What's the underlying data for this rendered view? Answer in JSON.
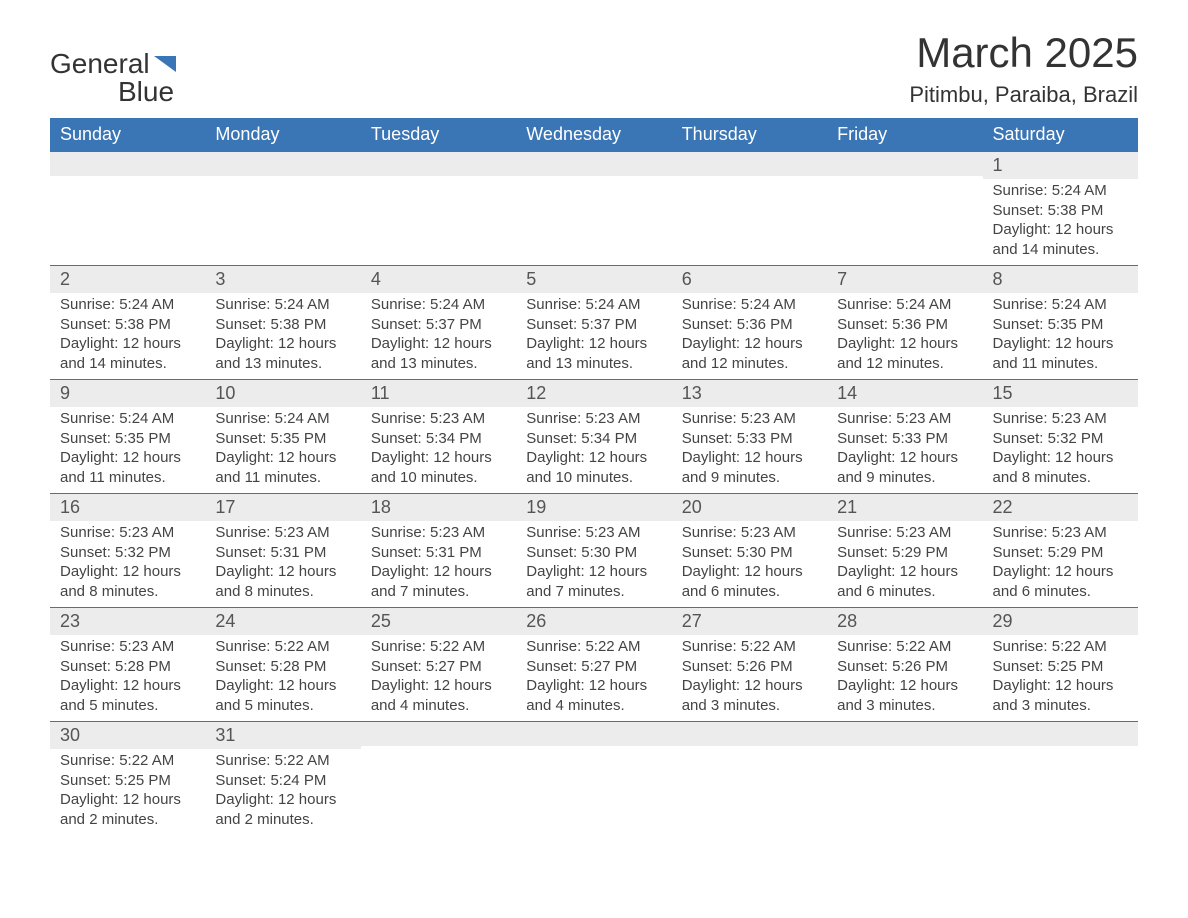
{
  "logo": {
    "text_general": "General",
    "text_blue": "Blue",
    "flag_color": "#3a75b5"
  },
  "header": {
    "month_title": "March 2025",
    "location": "Pitimbu, Paraiba, Brazil"
  },
  "colors": {
    "header_bg": "#3a75b5",
    "header_text": "#ffffff",
    "daynum_bg": "#ececec",
    "text": "#333333",
    "border": "#3a75b5"
  },
  "typography": {
    "month_title_fontsize": 42,
    "location_fontsize": 22,
    "weekday_fontsize": 18,
    "daynum_fontsize": 18,
    "body_fontsize": 15
  },
  "layout": {
    "columns": 7,
    "rows": 6,
    "start_weekday": "Sunday"
  },
  "weekdays": [
    "Sunday",
    "Monday",
    "Tuesday",
    "Wednesday",
    "Thursday",
    "Friday",
    "Saturday"
  ],
  "days": [
    [
      {
        "daynum": "",
        "sunrise": "",
        "sunset": "",
        "daylight": ""
      },
      {
        "daynum": "",
        "sunrise": "",
        "sunset": "",
        "daylight": ""
      },
      {
        "daynum": "",
        "sunrise": "",
        "sunset": "",
        "daylight": ""
      },
      {
        "daynum": "",
        "sunrise": "",
        "sunset": "",
        "daylight": ""
      },
      {
        "daynum": "",
        "sunrise": "",
        "sunset": "",
        "daylight": ""
      },
      {
        "daynum": "",
        "sunrise": "",
        "sunset": "",
        "daylight": ""
      },
      {
        "daynum": "1",
        "sunrise": "Sunrise: 5:24 AM",
        "sunset": "Sunset: 5:38 PM",
        "daylight": "Daylight: 12 hours and 14 minutes."
      }
    ],
    [
      {
        "daynum": "2",
        "sunrise": "Sunrise: 5:24 AM",
        "sunset": "Sunset: 5:38 PM",
        "daylight": "Daylight: 12 hours and 14 minutes."
      },
      {
        "daynum": "3",
        "sunrise": "Sunrise: 5:24 AM",
        "sunset": "Sunset: 5:38 PM",
        "daylight": "Daylight: 12 hours and 13 minutes."
      },
      {
        "daynum": "4",
        "sunrise": "Sunrise: 5:24 AM",
        "sunset": "Sunset: 5:37 PM",
        "daylight": "Daylight: 12 hours and 13 minutes."
      },
      {
        "daynum": "5",
        "sunrise": "Sunrise: 5:24 AM",
        "sunset": "Sunset: 5:37 PM",
        "daylight": "Daylight: 12 hours and 13 minutes."
      },
      {
        "daynum": "6",
        "sunrise": "Sunrise: 5:24 AM",
        "sunset": "Sunset: 5:36 PM",
        "daylight": "Daylight: 12 hours and 12 minutes."
      },
      {
        "daynum": "7",
        "sunrise": "Sunrise: 5:24 AM",
        "sunset": "Sunset: 5:36 PM",
        "daylight": "Daylight: 12 hours and 12 minutes."
      },
      {
        "daynum": "8",
        "sunrise": "Sunrise: 5:24 AM",
        "sunset": "Sunset: 5:35 PM",
        "daylight": "Daylight: 12 hours and 11 minutes."
      }
    ],
    [
      {
        "daynum": "9",
        "sunrise": "Sunrise: 5:24 AM",
        "sunset": "Sunset: 5:35 PM",
        "daylight": "Daylight: 12 hours and 11 minutes."
      },
      {
        "daynum": "10",
        "sunrise": "Sunrise: 5:24 AM",
        "sunset": "Sunset: 5:35 PM",
        "daylight": "Daylight: 12 hours and 11 minutes."
      },
      {
        "daynum": "11",
        "sunrise": "Sunrise: 5:23 AM",
        "sunset": "Sunset: 5:34 PM",
        "daylight": "Daylight: 12 hours and 10 minutes."
      },
      {
        "daynum": "12",
        "sunrise": "Sunrise: 5:23 AM",
        "sunset": "Sunset: 5:34 PM",
        "daylight": "Daylight: 12 hours and 10 minutes."
      },
      {
        "daynum": "13",
        "sunrise": "Sunrise: 5:23 AM",
        "sunset": "Sunset: 5:33 PM",
        "daylight": "Daylight: 12 hours and 9 minutes."
      },
      {
        "daynum": "14",
        "sunrise": "Sunrise: 5:23 AM",
        "sunset": "Sunset: 5:33 PM",
        "daylight": "Daylight: 12 hours and 9 minutes."
      },
      {
        "daynum": "15",
        "sunrise": "Sunrise: 5:23 AM",
        "sunset": "Sunset: 5:32 PM",
        "daylight": "Daylight: 12 hours and 8 minutes."
      }
    ],
    [
      {
        "daynum": "16",
        "sunrise": "Sunrise: 5:23 AM",
        "sunset": "Sunset: 5:32 PM",
        "daylight": "Daylight: 12 hours and 8 minutes."
      },
      {
        "daynum": "17",
        "sunrise": "Sunrise: 5:23 AM",
        "sunset": "Sunset: 5:31 PM",
        "daylight": "Daylight: 12 hours and 8 minutes."
      },
      {
        "daynum": "18",
        "sunrise": "Sunrise: 5:23 AM",
        "sunset": "Sunset: 5:31 PM",
        "daylight": "Daylight: 12 hours and 7 minutes."
      },
      {
        "daynum": "19",
        "sunrise": "Sunrise: 5:23 AM",
        "sunset": "Sunset: 5:30 PM",
        "daylight": "Daylight: 12 hours and 7 minutes."
      },
      {
        "daynum": "20",
        "sunrise": "Sunrise: 5:23 AM",
        "sunset": "Sunset: 5:30 PM",
        "daylight": "Daylight: 12 hours and 6 minutes."
      },
      {
        "daynum": "21",
        "sunrise": "Sunrise: 5:23 AM",
        "sunset": "Sunset: 5:29 PM",
        "daylight": "Daylight: 12 hours and 6 minutes."
      },
      {
        "daynum": "22",
        "sunrise": "Sunrise: 5:23 AM",
        "sunset": "Sunset: 5:29 PM",
        "daylight": "Daylight: 12 hours and 6 minutes."
      }
    ],
    [
      {
        "daynum": "23",
        "sunrise": "Sunrise: 5:23 AM",
        "sunset": "Sunset: 5:28 PM",
        "daylight": "Daylight: 12 hours and 5 minutes."
      },
      {
        "daynum": "24",
        "sunrise": "Sunrise: 5:22 AM",
        "sunset": "Sunset: 5:28 PM",
        "daylight": "Daylight: 12 hours and 5 minutes."
      },
      {
        "daynum": "25",
        "sunrise": "Sunrise: 5:22 AM",
        "sunset": "Sunset: 5:27 PM",
        "daylight": "Daylight: 12 hours and 4 minutes."
      },
      {
        "daynum": "26",
        "sunrise": "Sunrise: 5:22 AM",
        "sunset": "Sunset: 5:27 PM",
        "daylight": "Daylight: 12 hours and 4 minutes."
      },
      {
        "daynum": "27",
        "sunrise": "Sunrise: 5:22 AM",
        "sunset": "Sunset: 5:26 PM",
        "daylight": "Daylight: 12 hours and 3 minutes."
      },
      {
        "daynum": "28",
        "sunrise": "Sunrise: 5:22 AM",
        "sunset": "Sunset: 5:26 PM",
        "daylight": "Daylight: 12 hours and 3 minutes."
      },
      {
        "daynum": "29",
        "sunrise": "Sunrise: 5:22 AM",
        "sunset": "Sunset: 5:25 PM",
        "daylight": "Daylight: 12 hours and 3 minutes."
      }
    ],
    [
      {
        "daynum": "30",
        "sunrise": "Sunrise: 5:22 AM",
        "sunset": "Sunset: 5:25 PM",
        "daylight": "Daylight: 12 hours and 2 minutes."
      },
      {
        "daynum": "31",
        "sunrise": "Sunrise: 5:22 AM",
        "sunset": "Sunset: 5:24 PM",
        "daylight": "Daylight: 12 hours and 2 minutes."
      },
      {
        "daynum": "",
        "sunrise": "",
        "sunset": "",
        "daylight": ""
      },
      {
        "daynum": "",
        "sunrise": "",
        "sunset": "",
        "daylight": ""
      },
      {
        "daynum": "",
        "sunrise": "",
        "sunset": "",
        "daylight": ""
      },
      {
        "daynum": "",
        "sunrise": "",
        "sunset": "",
        "daylight": ""
      },
      {
        "daynum": "",
        "sunrise": "",
        "sunset": "",
        "daylight": ""
      }
    ]
  ]
}
